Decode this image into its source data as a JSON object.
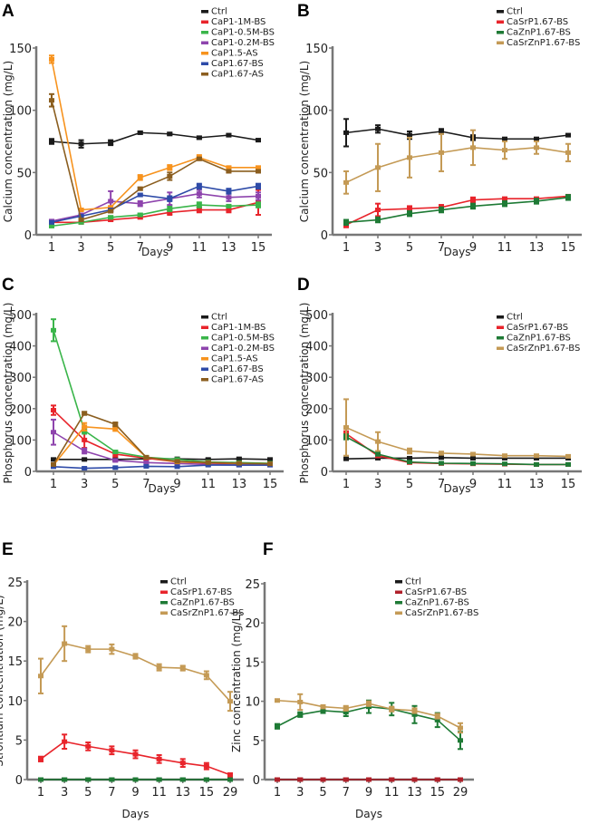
{
  "chart_data": [
    {
      "panel": "A",
      "type": "line",
      "xlabel": "Days",
      "ylabel": "Calcium concentration (mg/L)",
      "categories": [
        "1",
        "3",
        "5",
        "7",
        "9",
        "11",
        "13",
        "15"
      ],
      "ylim": [
        0,
        150
      ],
      "yticks": [
        0,
        50,
        100,
        150
      ],
      "legend_position": "top-right",
      "grid": false,
      "series": [
        {
          "name": "Ctrl",
          "color": "#1a1a1a",
          "values": [
            75,
            73,
            74,
            82,
            81,
            78,
            80,
            76
          ],
          "errors": [
            2,
            3,
            2,
            1,
            1,
            1,
            1,
            1
          ]
        },
        {
          "name": "CaP1-1M-BS",
          "color": "#e8242b",
          "values": [
            10,
            10,
            12,
            14,
            18,
            20,
            20,
            26
          ],
          "errors": [
            2,
            1,
            1,
            1,
            2,
            2,
            2,
            10
          ]
        },
        {
          "name": "CaP1-0.5M-BS",
          "color": "#3ab54a",
          "values": [
            7,
            10,
            14,
            16,
            21,
            24,
            23,
            24
          ],
          "errors": [
            1,
            1,
            1,
            1,
            2,
            2,
            1,
            2
          ]
        },
        {
          "name": "CaP1-0.2M-BS",
          "color": "#8e44ad",
          "values": [
            11,
            16,
            27,
            25,
            29,
            33,
            30,
            31
          ],
          "errors": [
            1,
            1,
            8,
            2,
            5,
            3,
            3,
            3
          ]
        },
        {
          "name": "CaP1.5-AS",
          "color": "#f7931e",
          "values": [
            141,
            20,
            22,
            46,
            54,
            62,
            54,
            54
          ],
          "errors": [
            3,
            1,
            1,
            2,
            2,
            2,
            1,
            1
          ]
        },
        {
          "name": "CaP1.67-BS",
          "color": "#2e4ba8",
          "values": [
            10,
            15,
            20,
            32,
            29,
            39,
            35,
            39
          ],
          "errors": [
            1,
            1,
            1,
            1,
            2,
            2,
            2,
            2
          ]
        },
        {
          "name": "CaP1.67-AS",
          "color": "#8b5e1f",
          "values": [
            108,
            12,
            19,
            37,
            47,
            61,
            51,
            51
          ],
          "errors": [
            5,
            1,
            1,
            1,
            3,
            1,
            1,
            1
          ]
        }
      ]
    },
    {
      "panel": "B",
      "type": "line",
      "xlabel": "Days",
      "ylabel": "Calcium concentration (mg/L)",
      "categories": [
        "1",
        "3",
        "5",
        "7",
        "9",
        "11",
        "13",
        "15"
      ],
      "ylim": [
        0,
        150
      ],
      "yticks": [
        0,
        50,
        100,
        150
      ],
      "legend_position": "top-right",
      "grid": false,
      "series": [
        {
          "name": "Ctrl",
          "color": "#1a1a1a",
          "values": [
            82,
            85,
            80,
            83,
            78,
            77,
            77,
            80
          ],
          "errors": [
            11,
            3,
            3,
            2,
            2,
            1,
            1,
            1
          ]
        },
        {
          "name": "CaSrP1.67-BS",
          "color": "#e8242b",
          "values": [
            8,
            20,
            21,
            22,
            28,
            29,
            29,
            31
          ],
          "errors": [
            2,
            5,
            2,
            2,
            2,
            1,
            1,
            1
          ]
        },
        {
          "name": "CaZnP1.67-BS",
          "color": "#1e7a35",
          "values": [
            10,
            12,
            17,
            20,
            23,
            25,
            27,
            30
          ],
          "errors": [
            2,
            2,
            2,
            2,
            2,
            2,
            2,
            2
          ]
        },
        {
          "name": "CaSrZnP1.67-BS",
          "color": "#c49a55",
          "values": [
            42,
            54,
            62,
            66,
            70,
            68,
            70,
            66
          ],
          "errors": [
            9,
            19,
            16,
            15,
            14,
            7,
            5,
            7
          ]
        }
      ]
    },
    {
      "panel": "C",
      "type": "line",
      "xlabel": "Days",
      "ylabel": "Phosphorus concentration (mg/L)",
      "categories": [
        "1",
        "3",
        "5",
        "7",
        "9",
        "11",
        "13",
        "15"
      ],
      "ylim": [
        0,
        500
      ],
      "yticks": [
        0,
        100,
        200,
        300,
        400,
        500
      ],
      "legend_position": "top-right",
      "grid": false,
      "series": [
        {
          "name": "Ctrl",
          "color": "#1a1a1a",
          "values": [
            38,
            38,
            38,
            40,
            40,
            38,
            40,
            38
          ],
          "errors": [
            2,
            2,
            2,
            2,
            2,
            2,
            2,
            2
          ]
        },
        {
          "name": "CaP1-1M-BS",
          "color": "#e8242b",
          "values": [
            195,
            100,
            55,
            42,
            30,
            26,
            24,
            24
          ],
          "errors": [
            15,
            25,
            8,
            5,
            4,
            3,
            3,
            3
          ]
        },
        {
          "name": "CaP1-0.5M-BS",
          "color": "#3ab54a",
          "values": [
            450,
            130,
            62,
            45,
            38,
            30,
            28,
            26
          ],
          "errors": [
            35,
            10,
            4,
            3,
            3,
            2,
            2,
            2
          ]
        },
        {
          "name": "CaP1-0.2M-BS",
          "color": "#8e44ad",
          "values": [
            125,
            65,
            35,
            28,
            25,
            22,
            20,
            20
          ],
          "errors": [
            40,
            8,
            4,
            3,
            3,
            2,
            2,
            2
          ]
        },
        {
          "name": "CaP1.5-AS",
          "color": "#f7931e",
          "values": [
            20,
            142,
            135,
            45,
            30,
            28,
            25,
            24
          ],
          "errors": [
            3,
            12,
            6,
            3,
            2,
            2,
            2,
            2
          ]
        },
        {
          "name": "CaP1.67-BS",
          "color": "#2e4ba8",
          "values": [
            15,
            10,
            12,
            16,
            15,
            20,
            20,
            20
          ],
          "errors": [
            1,
            1,
            1,
            1,
            1,
            1,
            1,
            1
          ]
        },
        {
          "name": "CaP1.67-AS",
          "color": "#8b5e1f",
          "values": [
            22,
            185,
            150,
            45,
            32,
            28,
            26,
            24
          ],
          "errors": [
            2,
            5,
            6,
            3,
            2,
            2,
            2,
            2
          ]
        }
      ]
    },
    {
      "panel": "D",
      "type": "line",
      "xlabel": "Days",
      "ylabel": "Phosphorus concentration (mg/L)",
      "categories": [
        "1",
        "3",
        "5",
        "7",
        "9",
        "11",
        "13",
        "15"
      ],
      "ylim": [
        0,
        500
      ],
      "yticks": [
        0,
        100,
        200,
        300,
        400,
        500
      ],
      "legend_position": "top-right",
      "grid": false,
      "series": [
        {
          "name": "Ctrl",
          "color": "#1a1a1a",
          "values": [
            40,
            42,
            42,
            44,
            42,
            42,
            42,
            42
          ],
          "errors": [
            2,
            2,
            2,
            2,
            2,
            2,
            2,
            2
          ]
        },
        {
          "name": "CaSrP1.67-BS",
          "color": "#e8242b",
          "values": [
            120,
            50,
            28,
            25,
            24,
            23,
            22,
            22
          ],
          "errors": [
            8,
            5,
            2,
            2,
            2,
            2,
            2,
            2
          ]
        },
        {
          "name": "CaZnP1.67-BS",
          "color": "#1e7a35",
          "values": [
            110,
            55,
            30,
            26,
            25,
            24,
            22,
            22
          ],
          "errors": [
            8,
            5,
            2,
            2,
            2,
            2,
            2,
            2
          ]
        },
        {
          "name": "CaSrZnP1.67-BS",
          "color": "#c49a55",
          "values": [
            140,
            95,
            65,
            58,
            55,
            50,
            50,
            48
          ],
          "errors": [
            90,
            30,
            8,
            5,
            4,
            3,
            3,
            3
          ]
        }
      ]
    },
    {
      "panel": "E",
      "type": "line",
      "xlabel": "Days",
      "ylabel": "Strontium concentration (mg/L)",
      "categories": [
        "1",
        "3",
        "5",
        "7",
        "9",
        "11",
        "13",
        "15",
        "29"
      ],
      "ylim": [
        0,
        25
      ],
      "yticks": [
        0,
        5,
        10,
        15,
        20,
        25
      ],
      "legend_position": "top-right",
      "grid": false,
      "series": [
        {
          "name": "Ctrl",
          "color": "#1a1a1a",
          "values": [
            0,
            0,
            0,
            0,
            0,
            0,
            0,
            0,
            0
          ],
          "errors": [
            0,
            0,
            0,
            0,
            0,
            0,
            0,
            0,
            0
          ]
        },
        {
          "name": "CaSrP1.67-BS",
          "color": "#e8242b",
          "values": [
            2.6,
            4.8,
            4.2,
            3.7,
            3.2,
            2.6,
            2.1,
            1.7,
            0.6
          ],
          "errors": [
            0.3,
            0.9,
            0.5,
            0.5,
            0.5,
            0.5,
            0.5,
            0.4,
            0.2
          ]
        },
        {
          "name": "CaZnP1.67-BS",
          "color": "#1e7a35",
          "values": [
            0,
            0,
            0,
            0,
            0,
            0,
            0,
            0,
            0
          ],
          "errors": [
            0,
            0,
            0,
            0,
            0,
            0,
            0,
            0,
            0
          ]
        },
        {
          "name": "CaSrZnP1.67-BS",
          "color": "#c49a55",
          "values": [
            13.1,
            17.2,
            16.5,
            16.5,
            15.6,
            14.2,
            14.1,
            13.2,
            9.9
          ],
          "errors": [
            2.2,
            2.2,
            0.4,
            0.6,
            0.3,
            0.4,
            0.3,
            0.5,
            1.2
          ]
        }
      ]
    },
    {
      "panel": "F",
      "type": "line",
      "xlabel": "Days",
      "ylabel": "Zinc concentration (mg/L)",
      "categories": [
        "1",
        "3",
        "5",
        "7",
        "9",
        "11",
        "13",
        "15",
        "29"
      ],
      "ylim": [
        0,
        25
      ],
      "yticks": [
        0,
        5,
        10,
        15,
        20,
        25
      ],
      "legend_position": "top-right",
      "grid": false,
      "series": [
        {
          "name": "Ctrl",
          "color": "#1a1a1a",
          "values": [
            0,
            0,
            0,
            0,
            0,
            0,
            0,
            0,
            0
          ],
          "errors": [
            0,
            0,
            0,
            0,
            0,
            0,
            0,
            0,
            0
          ]
        },
        {
          "name": "CaSrP1.67-BS",
          "color": "#b0202a",
          "values": [
            0,
            0,
            0,
            0,
            0,
            0,
            0,
            0,
            0
          ],
          "errors": [
            0,
            0,
            0,
            0,
            0,
            0,
            0,
            0,
            0
          ]
        },
        {
          "name": "CaZnP1.67-BS",
          "color": "#1e7a35",
          "values": [
            6.8,
            8.3,
            8.8,
            8.6,
            9.3,
            9.0,
            8.3,
            7.6,
            5.0
          ],
          "errors": [
            0.3,
            0.3,
            0.3,
            0.5,
            0.8,
            0.8,
            1.1,
            0.9,
            1.1
          ]
        },
        {
          "name": "CaSrZnP1.67-BS",
          "color": "#c49a55",
          "values": [
            10.1,
            9.9,
            9.3,
            9.1,
            9.7,
            9.0,
            8.8,
            8.1,
            6.6
          ],
          "errors": [
            0.1,
            1.0,
            0.2,
            0.3,
            0.3,
            0.3,
            0.3,
            0.3,
            0.6
          ]
        }
      ]
    }
  ]
}
